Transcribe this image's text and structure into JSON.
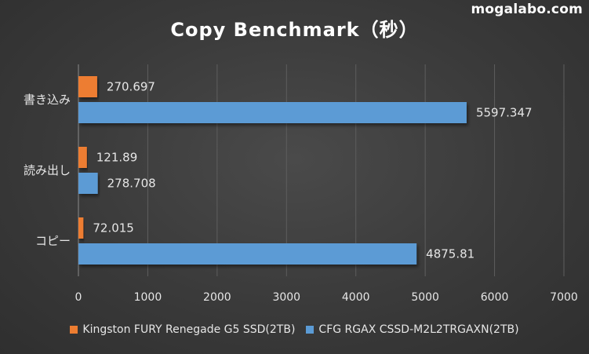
{
  "watermark": "mogalabo.com",
  "chart_data": {
    "type": "bar",
    "orientation": "horizontal",
    "title": "Copy Benchmark（秒）",
    "categories": [
      "書き込み",
      "読み出し",
      "コピー"
    ],
    "series": [
      {
        "name": "Kingston FURY Renegade G5 SSD(2TB)",
        "color": "#ed7d31",
        "values": [
          270.697,
          121.89,
          72.015
        ],
        "labels": [
          "270.697",
          "121.89",
          "72.015"
        ]
      },
      {
        "name": "CFG RGAX CSSD-M2L2TRGAXN(2TB)",
        "color": "#5b9bd5",
        "values": [
          5597.347,
          278.708,
          4875.81
        ],
        "labels": [
          "5597.347",
          "278.708",
          "4875.81"
        ]
      }
    ],
    "xlim": [
      0,
      7000
    ],
    "xticks": [
      0,
      1000,
      2000,
      3000,
      4000,
      5000,
      6000,
      7000
    ],
    "grid": true,
    "legend": "bottom"
  }
}
